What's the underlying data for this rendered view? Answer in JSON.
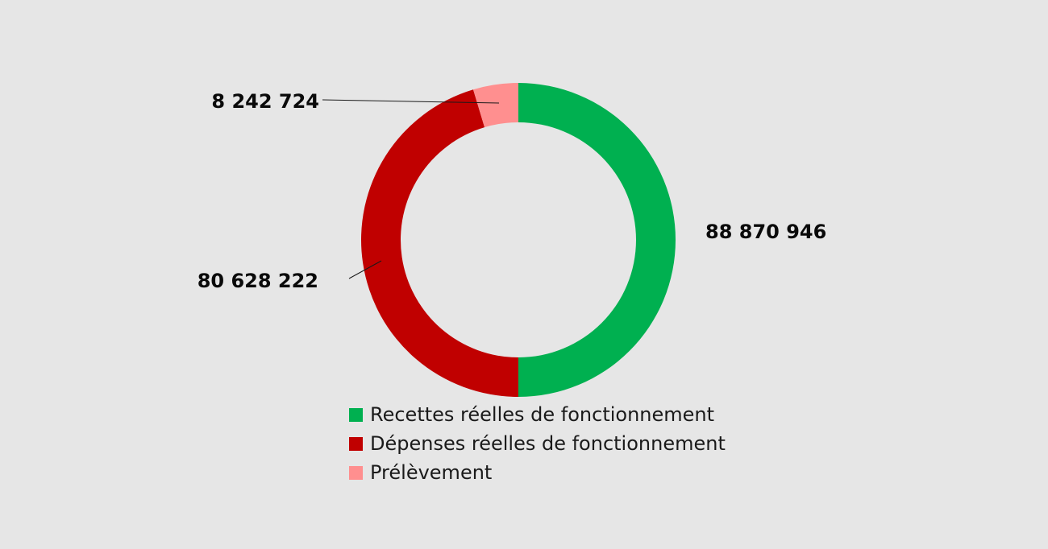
{
  "chart_data": {
    "type": "pie",
    "variant": "donut",
    "series": [
      {
        "name": "Recettes réelles de fonctionnement",
        "value": 88870946,
        "label": "88 870 946",
        "color": "#00b050"
      },
      {
        "name": "Dépenses réelles de fonctionnement",
        "value": 80628222,
        "label": "80 628 222",
        "color": "#c00000"
      },
      {
        "name": "Prélèvement",
        "value": 8242724,
        "label": "8 242 724",
        "color": "#ff8f8f"
      }
    ],
    "legend_position": "bottom"
  },
  "legend": {
    "items": [
      {
        "label": "Recettes réelles de fonctionnement",
        "color": "#00b050"
      },
      {
        "label": "Dépenses réelles de fonctionnement",
        "color": "#c00000"
      },
      {
        "label": "Prélèvement",
        "color": "#ff8f8f"
      }
    ]
  },
  "colors": {
    "background": "#e6e6e6",
    "leader_line": "#1a1a1a"
  }
}
